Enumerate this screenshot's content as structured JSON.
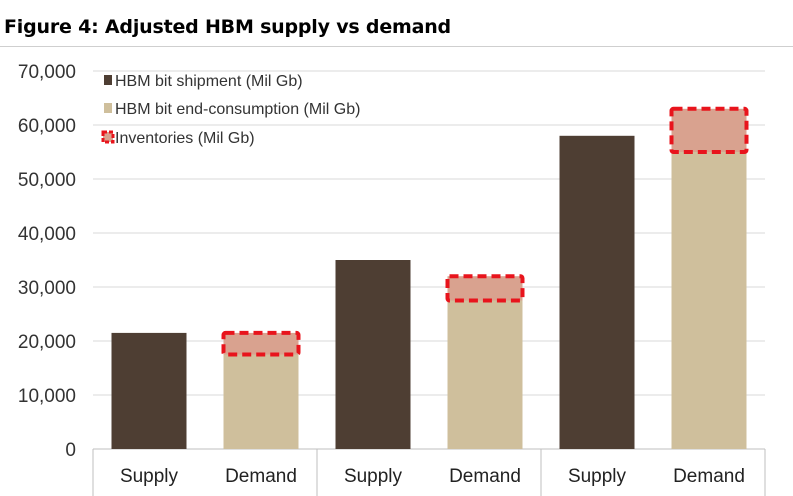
{
  "figure": {
    "title": "Figure 4: Adjusted HBM supply vs demand"
  },
  "chart_data": {
    "type": "bar",
    "title": "Figure 4: Adjusted HBM supply vs demand",
    "xlabel": "",
    "ylabel": "",
    "ylim": [
      0,
      70000
    ],
    "yticks": [
      "0",
      "10,000",
      "20,000",
      "30,000",
      "40,000",
      "50,000",
      "60,000",
      "70,000"
    ],
    "grid": true,
    "legend_position": "top-left",
    "categories": [
      "Supply",
      "Demand",
      "Supply",
      "Demand",
      "Supply",
      "Demand"
    ],
    "groups": 3,
    "series": [
      {
        "name": "HBM bit shipment (Mil Gb)",
        "color": "#4e3e33",
        "values": [
          21500,
          null,
          35000,
          null,
          58000,
          null
        ]
      },
      {
        "name": "HBM bit end-consumption (Mil Gb)",
        "color": "#cfbf9c",
        "values": [
          null,
          17500,
          null,
          27500,
          null,
          55000
        ]
      },
      {
        "name": "Inventories (Mil Gb)",
        "color": "#d9a28f",
        "border": "#e8141c",
        "values": [
          null,
          4000,
          null,
          4500,
          null,
          8000
        ]
      }
    ]
  }
}
